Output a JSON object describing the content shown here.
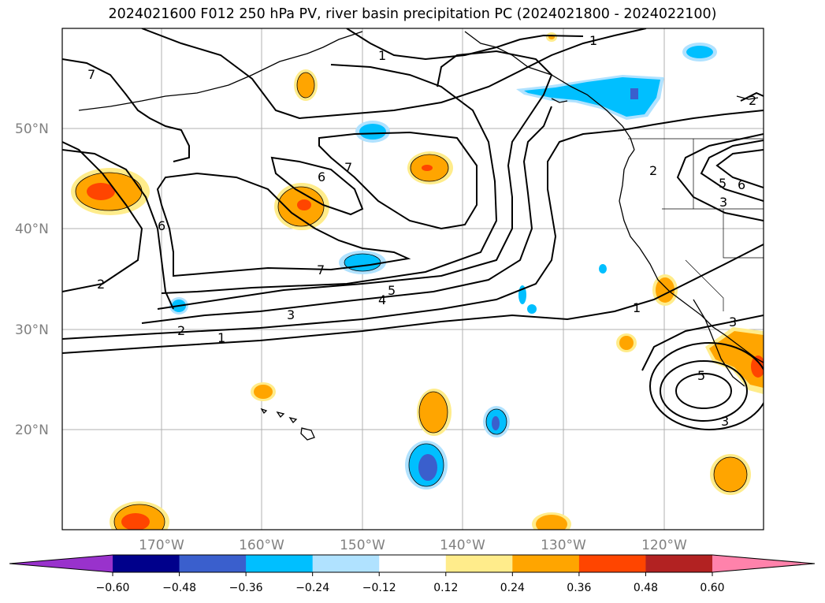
{
  "title": "2024021600 F012 250 hPa PV, river basin precipitation PC (2024021800 - 2024022100)",
  "lat_labels": [
    "50°N",
    "40°N",
    "30°N",
    "20°N"
  ],
  "lon_labels": [
    "170°W",
    "160°W",
    "150°W",
    "140°W",
    "130°W",
    "120°W"
  ],
  "pv_contour_labels": [
    "1",
    "1",
    "1",
    "1",
    "2",
    "2",
    "2",
    "2",
    "3",
    "3",
    "3",
    "3",
    "4",
    "5",
    "5",
    "5",
    "6",
    "6",
    "6",
    "7",
    "7",
    "7"
  ],
  "colorbar": {
    "ticks": [
      "−0.60",
      "−0.48",
      "−0.36",
      "−0.24",
      "−0.12",
      "0.12",
      "0.24",
      "0.36",
      "0.48",
      "0.60"
    ],
    "colors": [
      "#9932cc",
      "#00008b",
      "#3a5fcd",
      "#00bfff",
      "#b0e2ff",
      "#ffffff",
      "#ffec8b",
      "#ffa500",
      "#ff4500",
      "#b22222",
      "#ff82ab"
    ]
  }
}
